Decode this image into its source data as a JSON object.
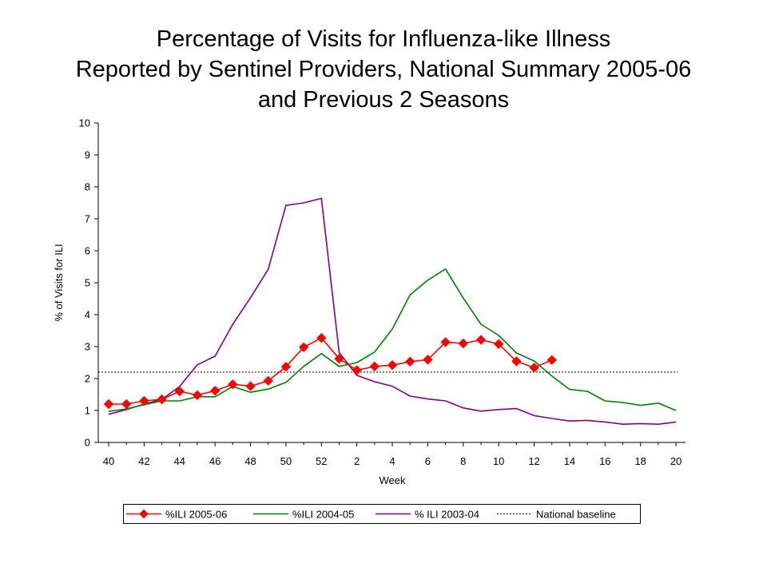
{
  "chart_data": {
    "type": "line",
    "title_lines": [
      "Percentage of Visits for Influenza-like Illness",
      "Reported by Sentinel Providers, National Summary 2005-06",
      "and Previous 2 Seasons"
    ],
    "xlabel": "Week",
    "ylabel": "% of Visits for ILI",
    "ylim": [
      0,
      10
    ],
    "yticks": [
      0,
      1,
      2,
      3,
      4,
      5,
      6,
      7,
      8,
      9,
      10
    ],
    "weeks": [
      40,
      41,
      42,
      43,
      44,
      45,
      46,
      47,
      48,
      49,
      50,
      51,
      52,
      1,
      2,
      3,
      4,
      5,
      6,
      7,
      8,
      9,
      10,
      11,
      12,
      13,
      14,
      15,
      16,
      17,
      18,
      19,
      20
    ],
    "xtick_labels": [
      "40",
      "42",
      "44",
      "46",
      "48",
      "50",
      "52",
      "2",
      "4",
      "6",
      "8",
      "10",
      "12",
      "14",
      "16",
      "18",
      "20"
    ],
    "grid": false,
    "legend_position": "bottom",
    "series": [
      {
        "name": "%ILI 2005-06",
        "color": "#ff0000",
        "marker": "diamond",
        "values": [
          1.2,
          1.2,
          1.3,
          1.35,
          1.6,
          1.48,
          1.62,
          1.82,
          1.76,
          1.93,
          2.37,
          2.98,
          3.27,
          2.62,
          2.26,
          2.38,
          2.42,
          2.53,
          2.59,
          3.14,
          3.1,
          3.21,
          3.08,
          2.54,
          2.34,
          2.58
        ]
      },
      {
        "name": "%ILI 2004-05",
        "color": "#008000",
        "marker": "none",
        "values": [
          0.97,
          1.05,
          1.18,
          1.3,
          1.3,
          1.43,
          1.43,
          1.75,
          1.57,
          1.67,
          1.88,
          2.38,
          2.78,
          2.38,
          2.5,
          2.83,
          3.55,
          4.62,
          5.08,
          5.43,
          4.52,
          3.7,
          3.35,
          2.8,
          2.55,
          2.08,
          1.66,
          1.6,
          1.3,
          1.25,
          1.16,
          1.23,
          1.0
        ]
      },
      {
        "name": "% ILI 2003-04",
        "color": "#800080",
        "marker": "none",
        "values": [
          0.88,
          1.03,
          1.2,
          1.35,
          1.75,
          2.43,
          2.7,
          3.7,
          4.53,
          5.42,
          7.42,
          7.5,
          7.64,
          2.82,
          2.1,
          1.9,
          1.76,
          1.45,
          1.36,
          1.3,
          1.08,
          0.98,
          1.03,
          1.06,
          0.84,
          0.75,
          0.67,
          0.69,
          0.64,
          0.57,
          0.59,
          0.57,
          0.64
        ]
      }
    ],
    "baseline": {
      "name": "National baseline",
      "value": 2.2,
      "color": "#000000",
      "style": "dotted"
    }
  }
}
